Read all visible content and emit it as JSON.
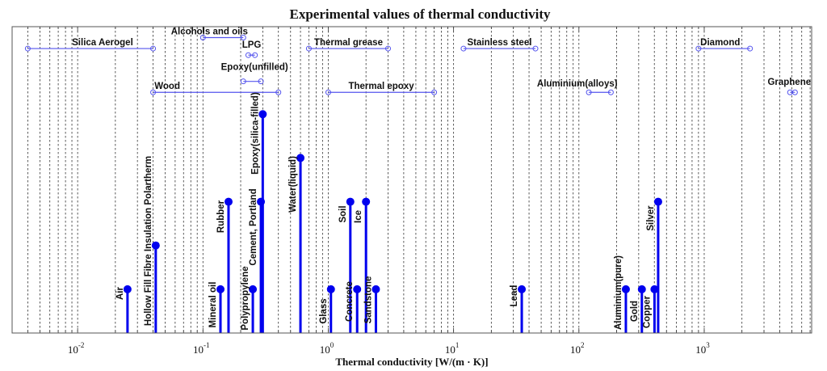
{
  "chart_data": {
    "type": "stem",
    "title": "Experimental values of thermal conductivity",
    "xlabel": "Thermal conductivity [W/(m · K)]",
    "ylabel": "",
    "xscale": "log",
    "xlim": [
      0.003,
      7200
    ],
    "ylim": [
      0,
      7
    ],
    "grid": "x-major-and-minor-dashed",
    "yaxis_visible": false,
    "x_ticks": [
      {
        "value": 0.01,
        "base": "10",
        "exp": "-2"
      },
      {
        "value": 0.1,
        "base": "10",
        "exp": "-1"
      },
      {
        "value": 1,
        "base": "10",
        "exp": "0"
      },
      {
        "value": 10,
        "base": "10",
        "exp": "1"
      },
      {
        "value": 100,
        "base": "10",
        "exp": "2"
      },
      {
        "value": 1000,
        "base": "10",
        "exp": "3"
      }
    ],
    "colors": {
      "stem": "#0000ee",
      "range": "#5555ee",
      "text": "#111111",
      "grid": "#333333"
    },
    "point_values": [
      {
        "name": "Air",
        "x": 0.025,
        "level": 1
      },
      {
        "name": "Hollow Fill Fibre Insulation Polartherm",
        "x": 0.042,
        "level": 2
      },
      {
        "name": "Mineral oil",
        "x": 0.138,
        "level": 1
      },
      {
        "name": "Rubber",
        "x": 0.16,
        "level": 3
      },
      {
        "name": "Polypropylene",
        "x": 0.25,
        "level": 1
      },
      {
        "name": "Cement, Portland",
        "x": 0.29,
        "level": 3
      },
      {
        "name": "Epoxy(silica-filled)",
        "x": 0.3,
        "level": 5
      },
      {
        "name": "Water(liquid)",
        "x": 0.6,
        "level": 4
      },
      {
        "name": "Glass",
        "x": 1.05,
        "level": 1
      },
      {
        "name": "Soil",
        "x": 1.5,
        "level": 3
      },
      {
        "name": "Concrete",
        "x": 1.7,
        "level": 1
      },
      {
        "name": "Ice",
        "x": 2.0,
        "level": 3
      },
      {
        "name": "Sandstone",
        "x": 2.4,
        "level": 1
      },
      {
        "name": "Lead",
        "x": 35,
        "level": 1
      },
      {
        "name": "Aluminium(pure)",
        "x": 237,
        "level": 1
      },
      {
        "name": "Gold",
        "x": 318,
        "level": 1
      },
      {
        "name": "Copper",
        "x": 401,
        "level": 1
      },
      {
        "name": "Silver",
        "x": 429,
        "level": 3
      }
    ],
    "range_values": [
      {
        "name": "Silica Aerogel",
        "min": 0.004,
        "max": 0.04,
        "level": 6.5
      },
      {
        "name": "Alcohols and oils",
        "min": 0.1,
        "max": 0.21,
        "level": 6.75
      },
      {
        "name": "LPG",
        "min": 0.23,
        "max": 0.26,
        "level": 6.35
      },
      {
        "name": "Epoxy(unfilled)",
        "min": 0.21,
        "max": 0.29,
        "level": 5.75
      },
      {
        "name": "Wood",
        "min": 0.04,
        "max": 0.4,
        "level": 5.5
      },
      {
        "name": "Thermal grease",
        "min": 0.7,
        "max": 3.0,
        "level": 6.5
      },
      {
        "name": "Thermal epoxy",
        "min": 1.0,
        "max": 7.0,
        "level": 5.5
      },
      {
        "name": "Stainless steel",
        "min": 12.0,
        "max": 45.0,
        "level": 6.5
      },
      {
        "name": "Aluminium(alloys)",
        "min": 120,
        "max": 180,
        "level": 5.5
      },
      {
        "name": "Diamond",
        "min": 900,
        "max": 2320,
        "level": 6.5
      },
      {
        "name": "Graphene",
        "min": 4840,
        "max": 5300,
        "level": 5.5
      }
    ]
  }
}
